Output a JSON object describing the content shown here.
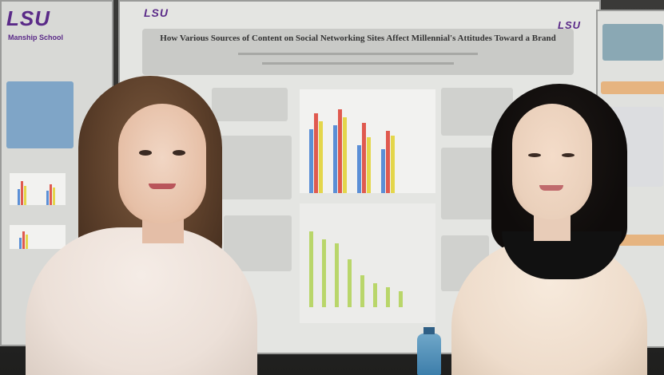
{
  "poster": {
    "logo_left": "LSU",
    "logo_left_sub": "Manship School",
    "logo_main": "LSU",
    "logo_right": "LSU",
    "title": "How Various Sources of Content on Social Networking Sites Affect Millennial's Attitudes Toward a Brand"
  },
  "colors": {
    "lsu_purple": "#5a2a88",
    "bar_red": "#e05a4f",
    "bar_blue": "#5b8fd6",
    "bar_yellow": "#e4d64a",
    "bar_green": "#b9d66a"
  }
}
